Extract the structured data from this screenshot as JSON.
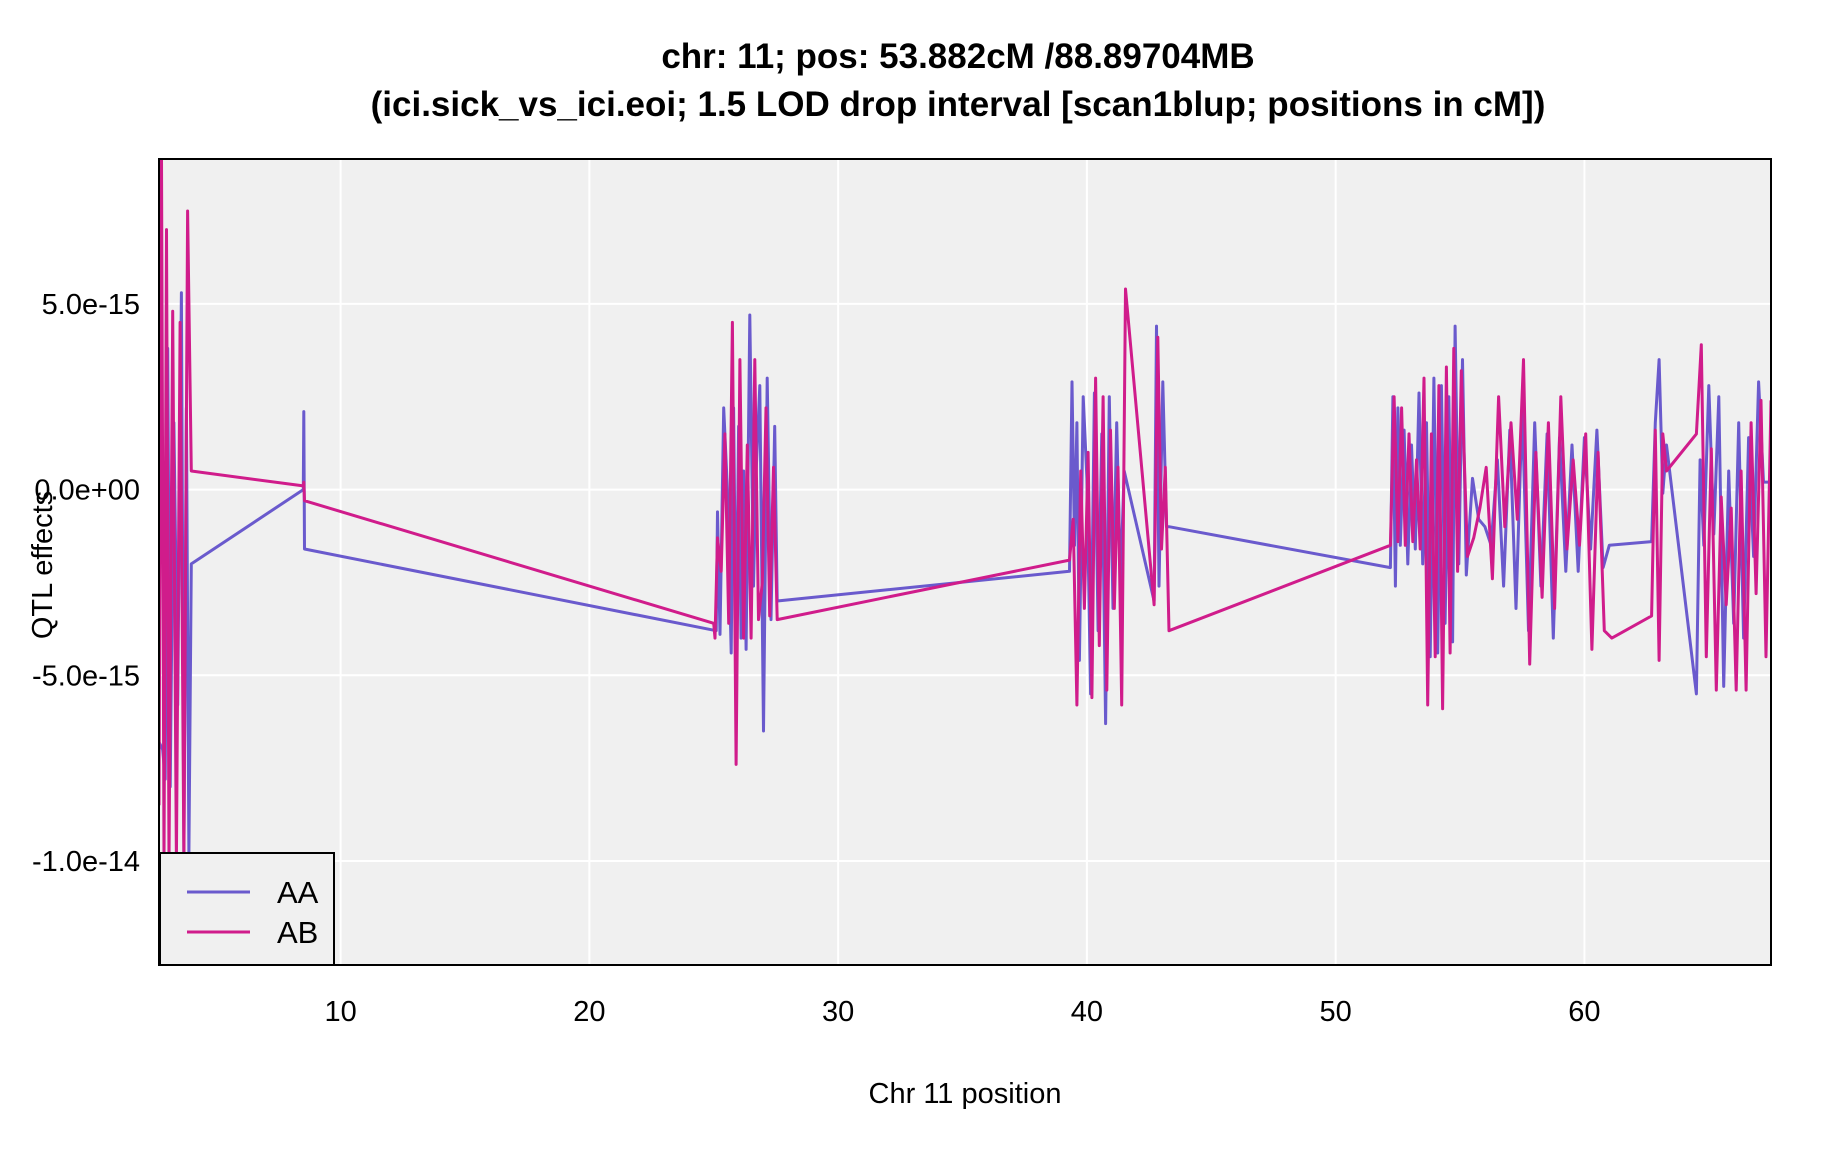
{
  "chart_data": {
    "type": "line",
    "title_line1": "chr: 11; pos: 53.882cM /88.89704MB",
    "title_line2": "(ici.sick_vs_ici.eoi; 1.5 LOD drop interval [scan1blup; positions in cM])",
    "xlabel": "Chr 11 position",
    "ylabel": "QTL effects",
    "xlim": [
      2.7,
      67.5
    ],
    "ylim": [
      -1.28e-14,
      8.9e-15
    ],
    "xticks": [
      10,
      20,
      30,
      40,
      50,
      60
    ],
    "xtick_labels": [
      "10",
      "20",
      "30",
      "40",
      "50",
      "60"
    ],
    "yticks": [
      5e-15,
      0,
      -5e-15,
      -1e-14
    ],
    "ytick_labels": [
      "5.0e-15",
      "0.0e+00",
      "-5.0e-15",
      "-1.0e-14"
    ],
    "grid": true,
    "legend_position": "bottom-left",
    "colors": {
      "AA": "#6a5acd",
      "AB": "#d01c8b",
      "panel": "#f0f0f0",
      "grid": "#ffffff"
    },
    "series": [
      {
        "name": "AA",
        "x": [
          2.7,
          2.85,
          2.95,
          3.05,
          3.15,
          3.3,
          3.45,
          3.6,
          3.7,
          3.8,
          3.9,
          4.0,
          8.5,
          8.52,
          8.55,
          25.1,
          25.15,
          25.25,
          25.4,
          25.55,
          25.7,
          25.8,
          25.9,
          26.0,
          26.1,
          26.2,
          26.3,
          26.45,
          26.6,
          26.7,
          26.85,
          27.0,
          27.15,
          27.3,
          27.45,
          27.55,
          39.3,
          39.4,
          39.5,
          39.6,
          39.7,
          39.85,
          40.0,
          40.15,
          40.3,
          40.45,
          40.6,
          40.75,
          40.9,
          41.05,
          41.2,
          41.35,
          41.5,
          42.7,
          42.8,
          42.9,
          43.05,
          43.2,
          43.3,
          52.2,
          52.3,
          52.4,
          52.5,
          52.6,
          52.75,
          52.9,
          53.05,
          53.2,
          53.35,
          53.5,
          53.65,
          53.8,
          53.95,
          54.1,
          54.25,
          54.4,
          54.55,
          54.7,
          54.8,
          54.95,
          55.1,
          55.25,
          55.5,
          55.75,
          56.0,
          56.25,
          56.5,
          56.75,
          57.0,
          57.25,
          57.5,
          57.75,
          58.0,
          58.25,
          58.5,
          58.75,
          59.0,
          59.25,
          59.5,
          59.75,
          60.0,
          60.25,
          60.5,
          60.75,
          61.0,
          62.7,
          62.85,
          63.0,
          63.15,
          63.3,
          64.5,
          64.65,
          64.8,
          65.0,
          65.2,
          65.4,
          65.6,
          65.8,
          66.0,
          66.2,
          66.4,
          66.6,
          66.8,
          67.0,
          67.2,
          67.4
        ],
        "y": [
          -6.8e-15,
          -7e-15,
          -7.8e-15,
          3.8e-15,
          -8e-15,
          1.8e-15,
          -5.8e-15,
          5.3e-15,
          -9.8e-15,
          2.2e-15,
          -9.8e-15,
          -2e-15,
          0.0,
          2.1e-15,
          -1.6e-15,
          -3.8e-15,
          -6e-16,
          -3.9e-15,
          2.2e-15,
          0.0,
          -4.4e-15,
          2.2e-15,
          -4.5e-15,
          1.7e-15,
          -4e-15,
          5e-16,
          -4.3e-15,
          4.7e-15,
          -2.6e-15,
          4e-16,
          2.8e-15,
          -6.5e-15,
          3e-15,
          -3.5e-15,
          1.7e-15,
          -3e-15,
          -2.2e-15,
          2.9e-15,
          -1.5e-15,
          1.8e-15,
          -4.6e-15,
          2.5e-15,
          3e-16,
          -5.5e-15,
          2.6e-15,
          -3.8e-15,
          1.5e-15,
          -6.3e-15,
          2.5e-15,
          -3.2e-15,
          1.8e-15,
          -2.5e-15,
          5e-16,
          -3e-15,
          4.4e-15,
          -2.6e-15,
          2.9e-15,
          -1e-15,
          -1e-15,
          -2.1e-15,
          2.5e-15,
          -2.6e-15,
          2.2e-15,
          -1.5e-15,
          1.6e-15,
          -2e-15,
          1.2e-15,
          -1.6e-15,
          2.6e-15,
          -2e-15,
          1.8e-15,
          -4.5e-15,
          3e-15,
          -4.4e-15,
          2.8e-15,
          -3.6e-15,
          2.5e-15,
          -4.1e-15,
          4.4e-15,
          -2e-15,
          3.5e-15,
          -2.3e-15,
          3e-16,
          -8e-16,
          -1e-15,
          -1.5e-15,
          8e-16,
          -2.6e-15,
          1.6e-15,
          -3.2e-15,
          2.2e-15,
          -3.8e-15,
          1.8e-15,
          -2.6e-15,
          1.5e-15,
          -4e-15,
          1.4e-15,
          -2.2e-15,
          1.2e-15,
          -2.2e-15,
          1.4e-15,
          -1.6e-15,
          1.6e-15,
          -2.1e-15,
          -1.5e-15,
          -1.4e-15,
          1.8e-15,
          3.5e-15,
          -1e-16,
          1.2e-15,
          -5.5e-15,
          8e-16,
          -1.5e-15,
          2.8e-15,
          -1.2e-15,
          2.5e-15,
          -5.3e-15,
          5e-16,
          -3.6e-15,
          1.8e-15,
          -4e-15,
          1.4e-15,
          -1.8e-15,
          2.9e-15,
          2e-16,
          2e-16
        ],
        "note": ""
      },
      {
        "name": "AB",
        "x": [
          2.7,
          2.8,
          2.9,
          3.0,
          3.1,
          3.25,
          3.4,
          3.55,
          3.7,
          3.85,
          4.0,
          8.5,
          8.52,
          8.55,
          25.0,
          25.05,
          25.15,
          25.3,
          25.45,
          25.6,
          25.75,
          25.9,
          26.05,
          26.2,
          26.35,
          26.5,
          26.65,
          26.8,
          26.95,
          27.1,
          27.25,
          27.4,
          27.55,
          39.3,
          39.45,
          39.6,
          39.75,
          39.9,
          40.05,
          40.2,
          40.35,
          40.5,
          40.65,
          40.8,
          40.95,
          41.1,
          41.25,
          41.4,
          41.55,
          42.7,
          42.85,
          43.0,
          43.15,
          43.3,
          52.2,
          52.35,
          52.5,
          52.65,
          52.8,
          52.95,
          53.1,
          53.25,
          53.4,
          53.55,
          53.7,
          53.85,
          54.0,
          54.15,
          54.3,
          54.45,
          54.6,
          54.75,
          54.9,
          55.05,
          55.3,
          55.55,
          55.8,
          56.05,
          56.3,
          56.55,
          56.8,
          57.05,
          57.3,
          57.55,
          57.8,
          58.05,
          58.3,
          58.55,
          58.8,
          59.05,
          59.3,
          59.55,
          59.8,
          60.05,
          60.3,
          60.55,
          60.8,
          61.1,
          62.7,
          62.85,
          63.0,
          63.15,
          63.3,
          64.5,
          64.7,
          64.9,
          65.1,
          65.3,
          65.5,
          65.7,
          65.9,
          66.1,
          66.3,
          66.5,
          66.7,
          66.9,
          67.1,
          67.3,
          67.5
        ],
        "y": [
          -8.5e-15,
          8.9e-15,
          -1e-14,
          7e-15,
          -1e-14,
          4.8e-15,
          -1e-14,
          4.5e-15,
          -1e-14,
          7.5e-15,
          5e-16,
          1e-16,
          2e-16,
          -3e-16,
          -3.6e-15,
          -4e-15,
          -1.3e-15,
          -2.2e-15,
          1.5e-15,
          -3.6e-15,
          4.5e-15,
          -7.4e-15,
          3.5e-15,
          -4e-15,
          1.2e-15,
          -4e-15,
          3.5e-15,
          -3.5e-15,
          -2.5e-15,
          2.2e-15,
          -3.4e-15,
          6e-16,
          -3.5e-15,
          -1.9e-15,
          -8e-16,
          -5.8e-15,
          5e-16,
          -3.2e-15,
          1e-15,
          -5.6e-15,
          3e-15,
          -4.2e-15,
          2.5e-15,
          -5.4e-15,
          1.6e-15,
          -3.2e-15,
          6e-16,
          -5.8e-15,
          5.4e-15,
          -3.1e-15,
          4.1e-15,
          -1.6e-15,
          6e-16,
          -3.8e-15,
          -1.5e-15,
          2.5e-15,
          -1.4e-15,
          2.2e-15,
          -1.5e-15,
          1.5e-15,
          -1.4e-15,
          8e-16,
          -1.6e-15,
          3e-15,
          -5.8e-15,
          1.5e-15,
          -4.5e-15,
          2.8e-15,
          -5.9e-15,
          3.3e-15,
          -4.4e-15,
          3.8e-15,
          -2.2e-15,
          3.2e-15,
          -1.8e-15,
          -1.3e-15,
          -5e-16,
          6e-16,
          -2.4e-15,
          2.5e-15,
          -1e-15,
          1.8e-15,
          -8e-16,
          3.5e-15,
          -4.7e-15,
          1e-15,
          -2.9e-15,
          1.8e-15,
          -3.2e-15,
          2.5e-15,
          -1.6e-15,
          8e-16,
          -1.5e-15,
          1.5e-15,
          -4.3e-15,
          1e-15,
          -3.8e-15,
          -4e-15,
          -3.4e-15,
          1.6e-15,
          -4.6e-15,
          1.5e-15,
          5e-16,
          1.5e-15,
          3.9e-15,
          -4.5e-15,
          1.1e-15,
          -5.4e-15,
          -2e-16,
          -3.1e-15,
          -5e-16,
          -5.4e-15,
          5e-16,
          -5.4e-15,
          1.8e-15,
          -2.8e-15,
          2.4e-15,
          -4.5e-15,
          2.4e-15
        ]
      }
    ]
  }
}
